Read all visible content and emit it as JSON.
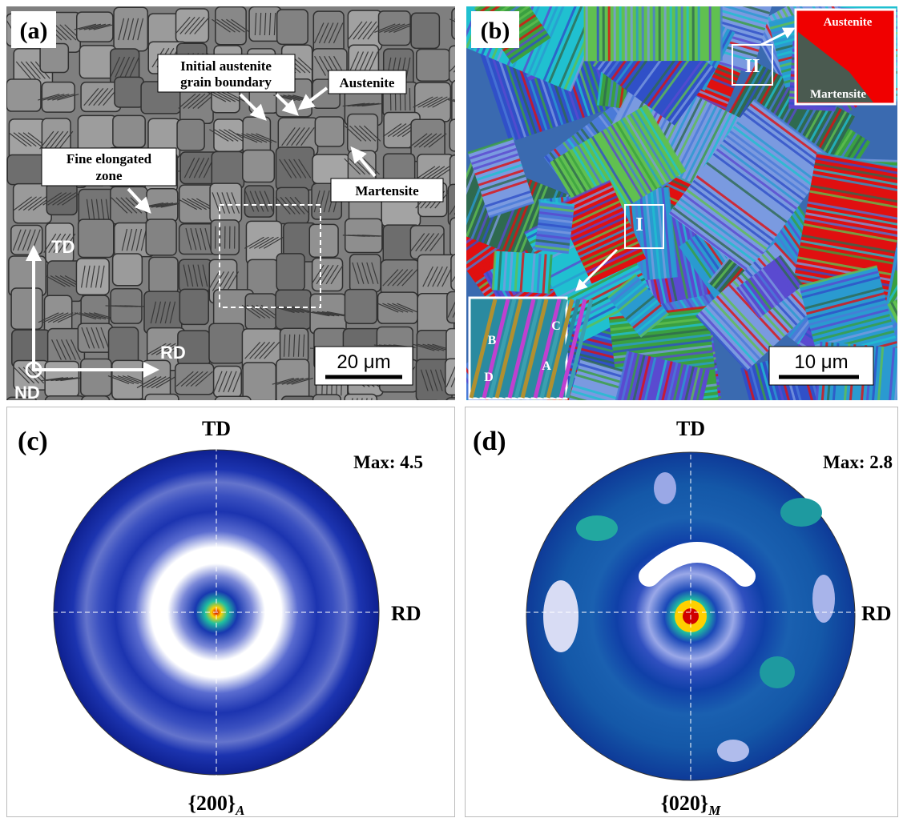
{
  "panel_a": {
    "label": "(a)",
    "grain_boundary": [
      "Initial austenite",
      "grain boundary"
    ],
    "austenite": "Austenite",
    "fine_zone": [
      "Fine elongated",
      "zone"
    ],
    "martensite": "Martensite",
    "td": "TD",
    "rd": "RD",
    "nd": "ND",
    "scale_bar": "20 μm"
  },
  "panel_b": {
    "label": "(b)",
    "region_2": "II",
    "inset_austenite": "Austenite",
    "inset_martensite": "Martensite",
    "region_1": "I",
    "variant_b": "B",
    "variant_c": "C",
    "variant_d": "D",
    "variant_a": "A",
    "scale_bar": "10 μm"
  },
  "panel_c": {
    "label": "(c)",
    "td": "TD",
    "rd": "RD",
    "max": "Max: 4.5",
    "plane": "{200}",
    "phase": "A"
  },
  "panel_d": {
    "label": "(d)",
    "td": "TD",
    "rd": "RD",
    "max": "Max: 2.8",
    "plane": "{020}",
    "phase": "M"
  }
}
